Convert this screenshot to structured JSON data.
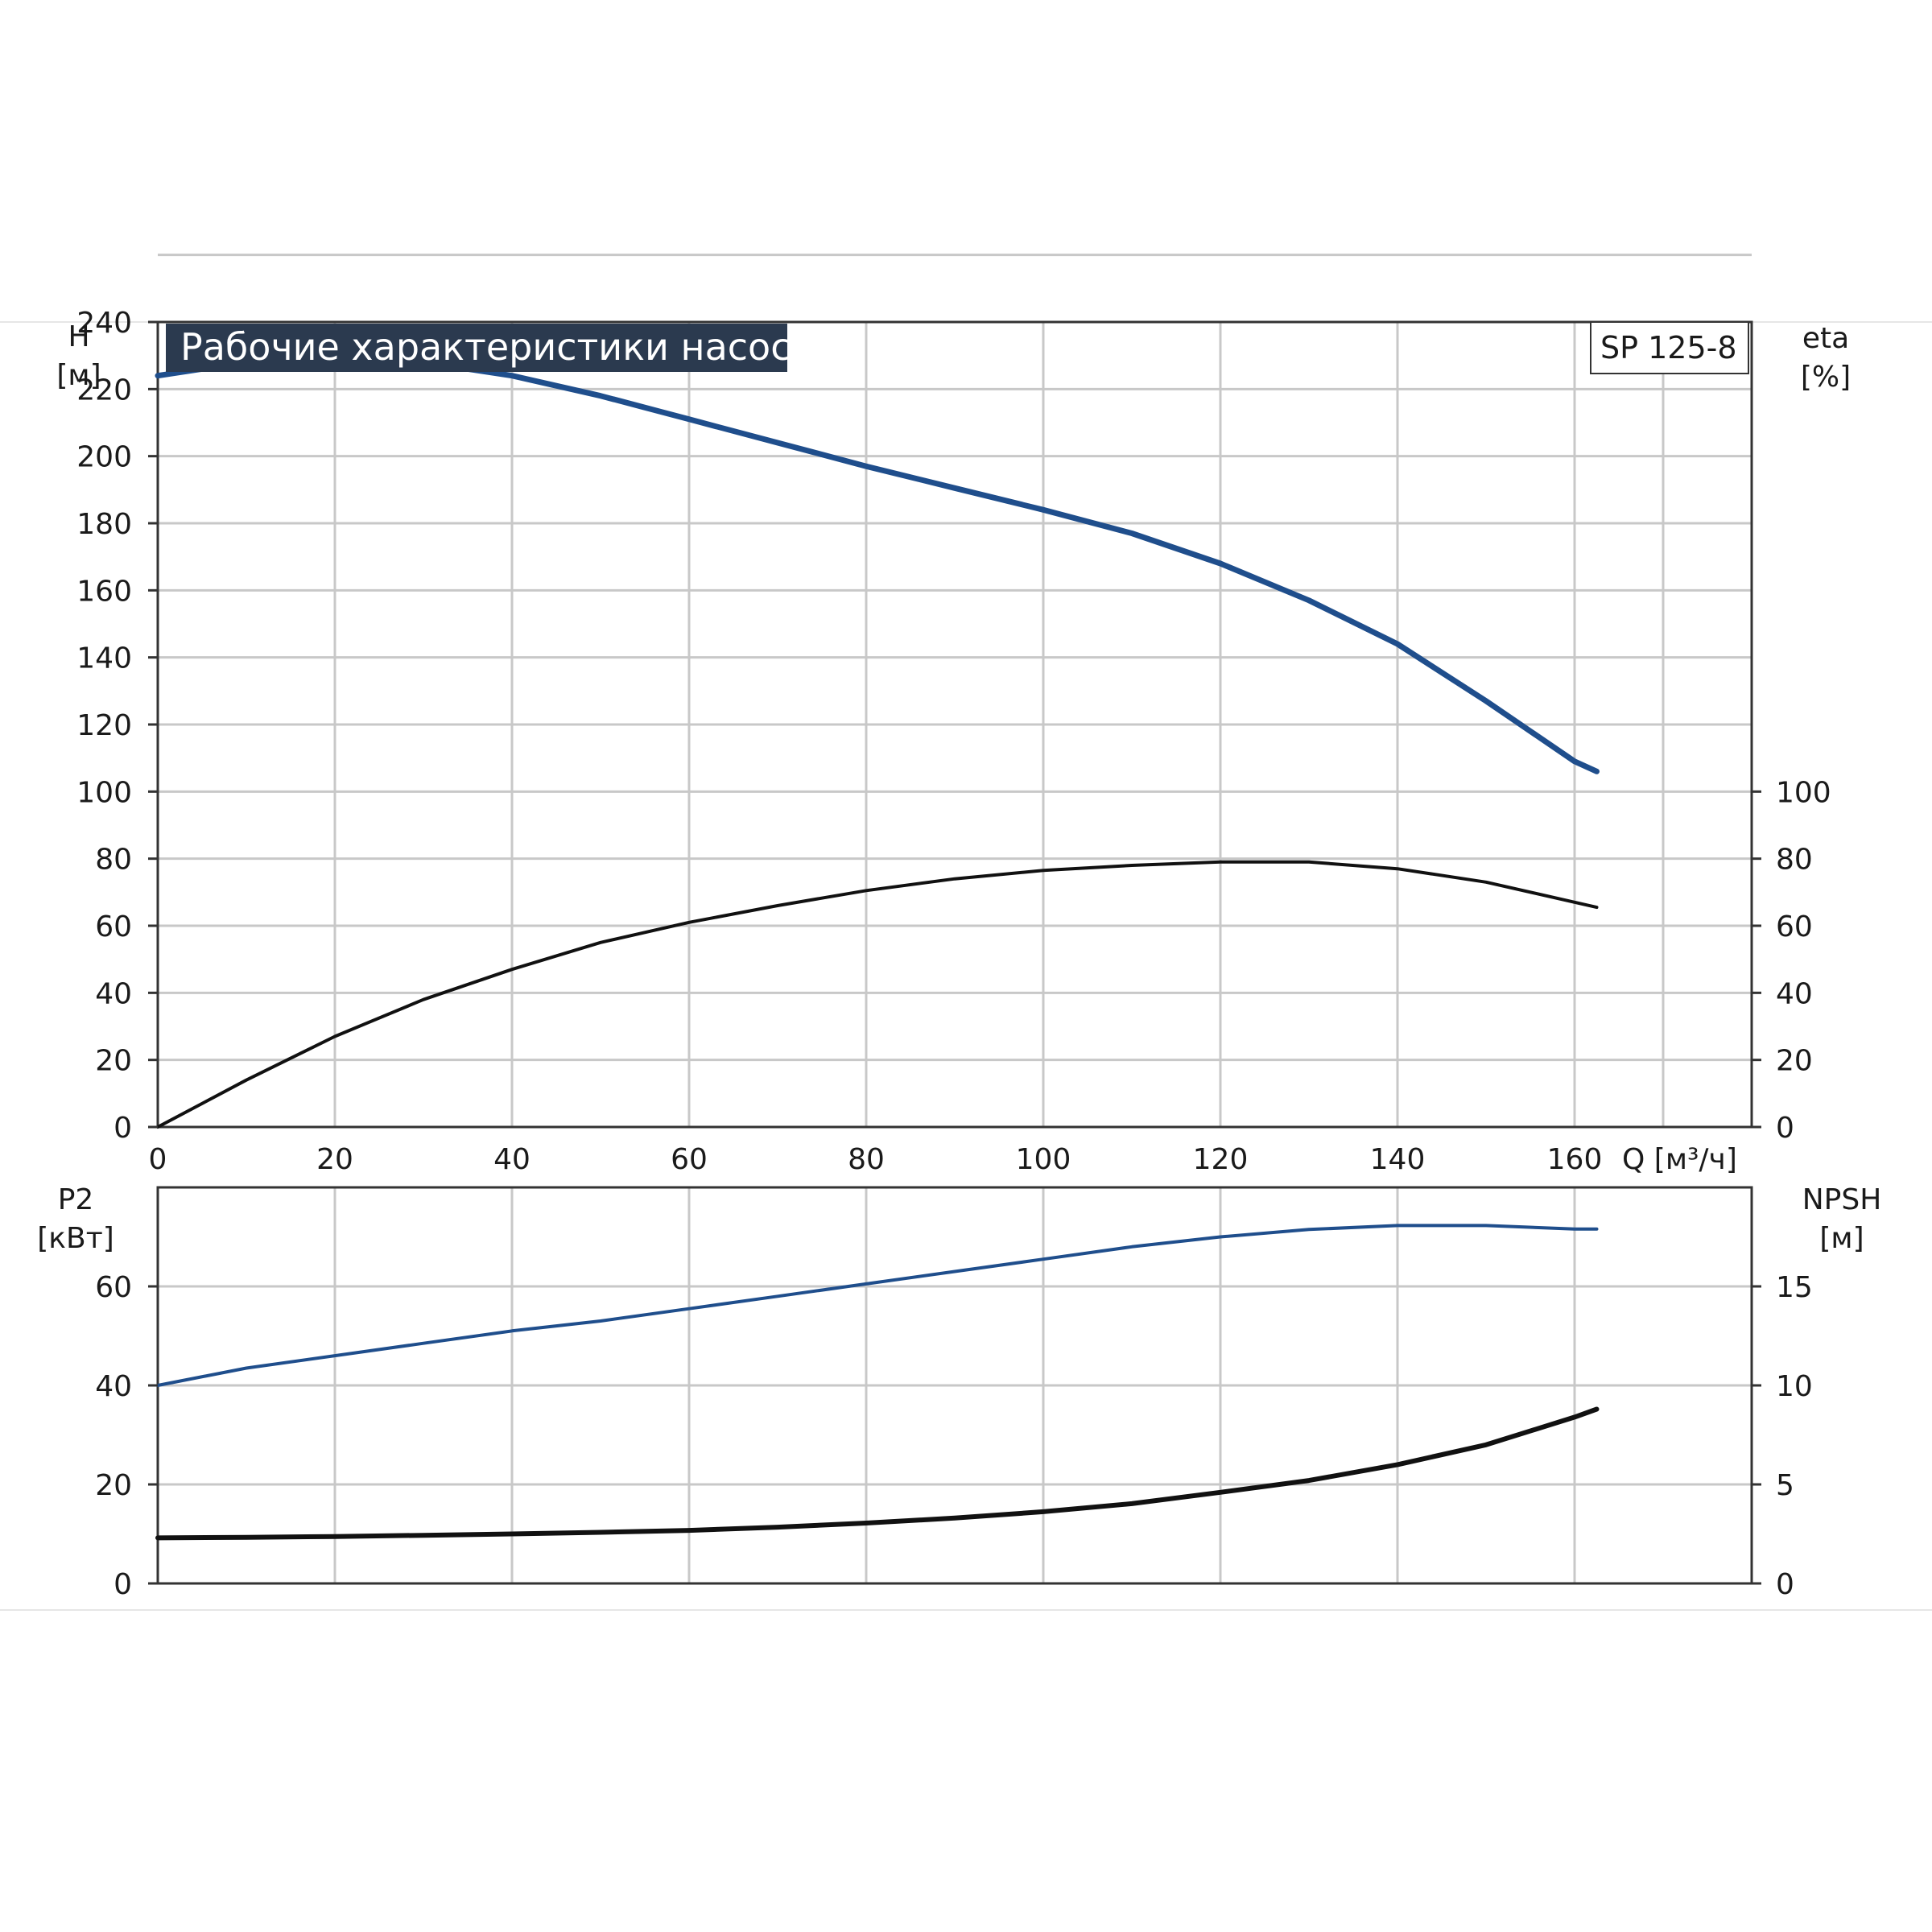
{
  "chart_data": {
    "title": "Рабочие характеристики насоса",
    "model": "SP 125-8",
    "colors": {
      "blue": "#1f4e8c",
      "black": "#111111",
      "grid": "#c8c8c8",
      "title_bg": "#2b3a4f"
    },
    "x_axis": {
      "label": "Q [м³/ч]",
      "range": [
        0,
        180
      ],
      "ticks": [
        0,
        20,
        40,
        60,
        80,
        100,
        120,
        140,
        160
      ],
      "tick_labels": [
        "0",
        "20",
        "40",
        "60",
        "80",
        "100",
        "120",
        "140",
        "160"
      ]
    },
    "top_panel": {
      "left_axis": {
        "label_line1": "H",
        "label_line2": "[м]",
        "range": [
          0,
          240
        ],
        "ticks": [
          0,
          20,
          40,
          60,
          80,
          100,
          120,
          140,
          160,
          180,
          200,
          220,
          240
        ],
        "tick_labels": [
          "0",
          "20",
          "40",
          "60",
          "80",
          "100",
          "120",
          "140",
          "160",
          "180",
          "200",
          "220",
          "240"
        ]
      },
      "right_axis": {
        "label_line1": "eta",
        "label_line2": "[%]",
        "range": [
          0,
          240
        ],
        "ticks": [
          0,
          20,
          40,
          60,
          80,
          100
        ],
        "tick_labels": [
          "0",
          "20",
          "40",
          "60",
          "80",
          "100"
        ]
      },
      "series": [
        {
          "key": "H",
          "color": "blue",
          "x": [
            0,
            10,
            20,
            30,
            40,
            50,
            60,
            70,
            80,
            90,
            100,
            110,
            120,
            130,
            140,
            150,
            160,
            162.5
          ],
          "y": [
            224,
            228,
            229.5,
            228,
            224,
            218,
            211,
            204,
            197,
            190.5,
            184,
            177,
            168,
            157,
            144,
            127,
            109,
            106
          ]
        },
        {
          "key": "eta",
          "color": "black",
          "x": [
            0,
            10,
            20,
            30,
            40,
            50,
            60,
            70,
            80,
            90,
            100,
            110,
            120,
            130,
            140,
            150,
            160,
            162.5
          ],
          "y": [
            0,
            14,
            27,
            38,
            47,
            55,
            61,
            66,
            70.5,
            74,
            76.5,
            78,
            79,
            79,
            77,
            73,
            67,
            65.5
          ]
        }
      ]
    },
    "bottom_panel": {
      "left_axis": {
        "label_line1": "P2",
        "label_line2": "[кВт]",
        "range": [
          0,
          80
        ],
        "ticks": [
          0,
          20,
          40,
          60
        ],
        "tick_labels": [
          "0",
          "20",
          "40",
          "60"
        ]
      },
      "right_axis": {
        "label_line1": "NPSH",
        "label_line2": "[м]",
        "range": [
          0,
          20
        ],
        "ticks": [
          0,
          5,
          10,
          15
        ],
        "tick_labels": [
          "0",
          "5",
          "10",
          "15"
        ]
      },
      "series": [
        {
          "key": "P2",
          "color": "blue",
          "axis": "left",
          "x": [
            0,
            10,
            20,
            30,
            40,
            50,
            60,
            70,
            80,
            90,
            100,
            110,
            120,
            130,
            140,
            150,
            160,
            162.5
          ],
          "y": [
            40,
            43.5,
            46,
            48.5,
            51,
            53,
            55.5,
            58,
            60.5,
            63,
            65.5,
            68,
            70,
            71.5,
            72.3,
            72.3,
            71.6,
            71.6
          ]
        },
        {
          "key": "NPSH",
          "color": "black",
          "axis": "right",
          "x": [
            0,
            10,
            20,
            30,
            40,
            50,
            60,
            70,
            80,
            90,
            100,
            110,
            120,
            130,
            140,
            150,
            160,
            162.5
          ],
          "y": [
            2.3,
            2.33,
            2.37,
            2.43,
            2.5,
            2.58,
            2.68,
            2.84,
            3.05,
            3.3,
            3.62,
            4.03,
            4.6,
            5.2,
            6.0,
            7.0,
            8.4,
            8.8
          ]
        }
      ]
    }
  }
}
